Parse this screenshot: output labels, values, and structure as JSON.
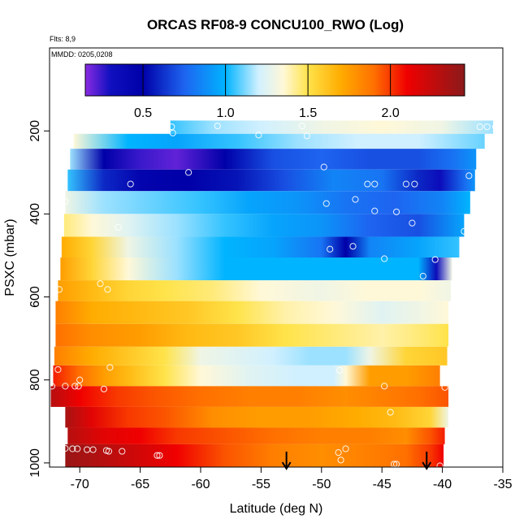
{
  "chart_data": {
    "type": "heatmap",
    "title": "ORCAS RF08-9 CONCU100_RWO (Log)",
    "flights_label": "Flts: 8,9",
    "date_label": "MMDD: 0205,0208",
    "xlabel": "Latitude (deg N)",
    "ylabel": "PSXC (mbar)",
    "xlim": [
      -72.5,
      -35
    ],
    "ylim": [
      1010,
      0
    ],
    "x_ticks": [
      -70,
      -65,
      -60,
      -55,
      -50,
      -45,
      -40,
      -35
    ],
    "x_tick_labels": [
      "-70",
      "-65",
      "-60",
      "-55",
      "-50",
      "-45",
      "-40",
      "-35"
    ],
    "y_ticks": [
      200,
      400,
      600,
      800,
      1000
    ],
    "y_tick_labels": [
      "200",
      "400",
      "600",
      "800",
      "1000"
    ],
    "colorbar": {
      "range": [
        0.15,
        2.45
      ],
      "ticks": [
        0.5,
        1.0,
        1.5,
        2.0
      ],
      "tick_labels": [
        "0.5",
        "1.0",
        "1.5",
        "2.0"
      ],
      "stops": [
        {
          "v": 0.15,
          "c": "#8a2be2"
        },
        {
          "v": 0.3,
          "c": "#1010c0"
        },
        {
          "v": 0.5,
          "c": "#0000a8"
        },
        {
          "v": 0.75,
          "c": "#1e64f0"
        },
        {
          "v": 1.0,
          "c": "#00b4ff"
        },
        {
          "v": 1.2,
          "c": "#d0f0ff"
        },
        {
          "v": 1.35,
          "c": "#fff8d8"
        },
        {
          "v": 1.5,
          "c": "#ffe34a"
        },
        {
          "v": 1.7,
          "c": "#ffac00"
        },
        {
          "v": 1.9,
          "c": "#ff7000"
        },
        {
          "v": 2.1,
          "c": "#f00000"
        },
        {
          "v": 2.45,
          "c": "#8b1a1a"
        }
      ]
    },
    "bands": [
      {
        "p0": 175,
        "p1": 207,
        "lat": [
          -62.5,
          -59,
          -55,
          -50,
          -45,
          -40,
          -35.8
        ],
        "val": [
          1.05,
          1.15,
          1.2,
          1.3,
          1.35,
          1.3,
          1.15
        ]
      },
      {
        "p0": 207,
        "p1": 243,
        "lat": [
          -70.5,
          -66,
          -62,
          -57,
          -52,
          -47,
          -42,
          -36.5
        ],
        "val": [
          1.35,
          1.0,
          0.95,
          1.05,
          1.15,
          1.2,
          1.2,
          1.1
        ]
      },
      {
        "p0": 243,
        "p1": 293,
        "lat": [
          -70.8,
          -68,
          -65,
          -62,
          -58,
          -54,
          -50,
          -46,
          -42,
          -39,
          -37.2
        ],
        "val": [
          1.15,
          0.5,
          0.25,
          0.2,
          0.5,
          0.7,
          0.75,
          0.7,
          0.7,
          0.8,
          0.9
        ]
      },
      {
        "p0": 293,
        "p1": 345,
        "lat": [
          -71,
          -68,
          -65,
          -61,
          -57,
          -53,
          -49,
          -45,
          -42,
          -40.2,
          -38,
          -37.3
        ],
        "val": [
          1.05,
          0.6,
          0.45,
          0.5,
          0.55,
          0.7,
          0.85,
          0.8,
          0.6,
          0.35,
          0.8,
          0.9
        ]
      },
      {
        "p0": 345,
        "p1": 400,
        "lat": [
          -71.2,
          -68,
          -64,
          -60,
          -56,
          -52,
          -48,
          -44,
          -40,
          -37.7
        ],
        "val": [
          1.3,
          1.15,
          1.1,
          1.05,
          0.95,
          0.9,
          0.8,
          0.75,
          0.85,
          1.0
        ]
      },
      {
        "p0": 400,
        "p1": 455,
        "lat": [
          -71.3,
          -69,
          -66,
          -62,
          -58,
          -54,
          -50,
          -46,
          -42,
          -38.2
        ],
        "val": [
          1.45,
          1.35,
          1.25,
          1.15,
          1.05,
          0.95,
          0.9,
          0.75,
          0.7,
          0.95
        ]
      },
      {
        "p0": 455,
        "p1": 505,
        "lat": [
          -71.5,
          -69,
          -66,
          -62,
          -58,
          -54,
          -50,
          -48,
          -46,
          -42,
          -38.6
        ],
        "val": [
          1.7,
          1.55,
          1.3,
          1.15,
          1.0,
          0.95,
          0.8,
          0.5,
          0.85,
          0.95,
          1.05
        ]
      },
      {
        "p0": 505,
        "p1": 560,
        "lat": [
          -71.6,
          -69,
          -66,
          -62,
          -58,
          -54,
          -50,
          -46,
          -42,
          -40.5,
          -39.2
        ],
        "val": [
          1.75,
          1.55,
          1.35,
          1.15,
          1.0,
          1.0,
          1.0,
          1.0,
          1.0,
          0.35,
          1.3
        ]
      },
      {
        "p0": 560,
        "p1": 610,
        "lat": [
          -71.8,
          -69,
          -66,
          -63,
          -59,
          -55,
          -50,
          -46,
          -42,
          -39.3
        ],
        "val": [
          1.75,
          1.65,
          1.55,
          1.5,
          1.45,
          1.35,
          1.3,
          1.35,
          1.35,
          1.3
        ]
      },
      {
        "p0": 610,
        "p1": 665,
        "lat": [
          -72,
          -69,
          -65,
          -61,
          -57,
          -53,
          -49,
          -45,
          -42,
          -39.5
        ],
        "val": [
          1.85,
          1.7,
          1.65,
          1.6,
          1.5,
          1.4,
          1.35,
          1.25,
          1.3,
          1.35
        ]
      },
      {
        "p0": 665,
        "p1": 720,
        "lat": [
          -72,
          -69,
          -65,
          -61,
          -57,
          -53,
          -49,
          -45,
          -42,
          -39.5
        ],
        "val": [
          1.9,
          1.8,
          1.75,
          1.65,
          1.6,
          1.5,
          1.45,
          1.4,
          1.45,
          1.5
        ]
      },
      {
        "p0": 720,
        "p1": 765,
        "lat": [
          -72.1,
          -69,
          -66,
          -63,
          -60,
          -57,
          -54,
          -51,
          -48,
          -46,
          -43,
          -39.6
        ],
        "val": [
          1.85,
          1.7,
          1.6,
          1.5,
          1.3,
          1.25,
          1.2,
          1.15,
          1.15,
          1.3,
          1.55,
          1.6
        ]
      },
      {
        "p0": 765,
        "p1": 815,
        "lat": [
          -72.2,
          -70,
          -68,
          -66,
          -63,
          -60,
          -56,
          -52,
          -49,
          -48,
          -46,
          -43,
          -40.2
        ],
        "val": [
          2.05,
          1.9,
          1.75,
          1.65,
          1.5,
          1.35,
          1.25,
          1.2,
          1.2,
          1.35,
          1.75,
          1.75,
          1.85
        ]
      },
      {
        "p0": 815,
        "p1": 865,
        "lat": [
          -72.4,
          -70,
          -67,
          -64,
          -60,
          -56,
          -52,
          -48,
          -45,
          -42,
          -39.5
        ],
        "val": [
          2.3,
          2.1,
          2.0,
          1.95,
          1.9,
          1.85,
          1.85,
          1.8,
          1.85,
          1.9,
          1.95
        ]
      },
      {
        "p0": 865,
        "p1": 915,
        "lat": [
          -71.2,
          -69,
          -66,
          -63,
          -59,
          -55,
          -51,
          -47,
          -44,
          -41,
          -39.5
        ],
        "val": [
          2.35,
          2.15,
          2.0,
          1.95,
          1.8,
          1.75,
          1.75,
          1.7,
          1.65,
          1.55,
          1.3
        ]
      },
      {
        "p0": 915,
        "p1": 955,
        "lat": [
          -71,
          -68,
          -65,
          -62,
          -58,
          -54,
          -50,
          -46,
          -43,
          -41,
          -39.8
        ],
        "val": [
          2.3,
          2.15,
          2.1,
          2.0,
          1.95,
          1.9,
          1.85,
          1.85,
          1.8,
          1.95,
          2.05
        ]
      },
      {
        "p0": 955,
        "p1": 1010,
        "lat": [
          -71.2,
          -68,
          -65,
          -62,
          -58,
          -54,
          -50,
          -46,
          -43,
          -41,
          -39.9
        ],
        "val": [
          2.4,
          2.3,
          2.2,
          2.1,
          1.95,
          1.85,
          1.8,
          1.85,
          1.9,
          2.0,
          2.1
        ]
      }
    ],
    "markers": [
      [
        -62.4,
        190
      ],
      [
        -62.3,
        205
      ],
      [
        -58.6,
        188
      ],
      [
        -55.2,
        210
      ],
      [
        -51.6,
        188
      ],
      [
        -51.2,
        212
      ],
      [
        -36.9,
        190
      ],
      [
        -36.3,
        190
      ],
      [
        -35.6,
        190
      ],
      [
        -71.2,
        232
      ],
      [
        -71.0,
        225
      ],
      [
        -61.0,
        300
      ],
      [
        -49.8,
        287
      ],
      [
        -37.8,
        308
      ],
      [
        -65.8,
        328
      ],
      [
        -46.2,
        328
      ],
      [
        -45.6,
        328
      ],
      [
        -43.0,
        328
      ],
      [
        -42.3,
        328
      ],
      [
        -71.2,
        370
      ],
      [
        -49.6,
        375
      ],
      [
        -47.2,
        365
      ],
      [
        -45.6,
        393
      ],
      [
        -43.8,
        395
      ],
      [
        -66.8,
        432
      ],
      [
        -42.5,
        422
      ],
      [
        -38.2,
        442
      ],
      [
        -49.3,
        485
      ],
      [
        -47.4,
        478
      ],
      [
        -44.8,
        508
      ],
      [
        -40.6,
        510
      ],
      [
        -41.6,
        550
      ],
      [
        -68.3,
        568
      ],
      [
        -71.7,
        582
      ],
      [
        -67.7,
        582
      ],
      [
        -38.0,
        582
      ],
      [
        -70.0,
        800
      ],
      [
        -48.5,
        777
      ],
      [
        -71.8,
        775
      ],
      [
        -67.5,
        770
      ],
      [
        -72.3,
        815
      ],
      [
        -71.2,
        815
      ],
      [
        -70.4,
        815
      ],
      [
        -70.1,
        815
      ],
      [
        -68.0,
        822
      ],
      [
        -44.8,
        815
      ],
      [
        -39.8,
        818
      ],
      [
        -44.3,
        878
      ],
      [
        -71.5,
        962
      ],
      [
        -71.2,
        965
      ],
      [
        -70.6,
        966
      ],
      [
        -70.2,
        966
      ],
      [
        -69.4,
        968
      ],
      [
        -68.9,
        968
      ],
      [
        -67.8,
        970
      ],
      [
        -67.6,
        972
      ],
      [
        -66.5,
        972
      ],
      [
        -63.6,
        982
      ],
      [
        -63.4,
        982
      ],
      [
        -48.6,
        975
      ],
      [
        -48.4,
        993
      ],
      [
        -48.0,
        966
      ],
      [
        -44.0,
        1003
      ],
      [
        -43.8,
        1003
      ],
      [
        -40.2,
        1007
      ]
    ],
    "arrows": [
      {
        "lat": -52.9,
        "p": 1010
      },
      {
        "lat": -41.3,
        "p": 1010
      }
    ]
  }
}
